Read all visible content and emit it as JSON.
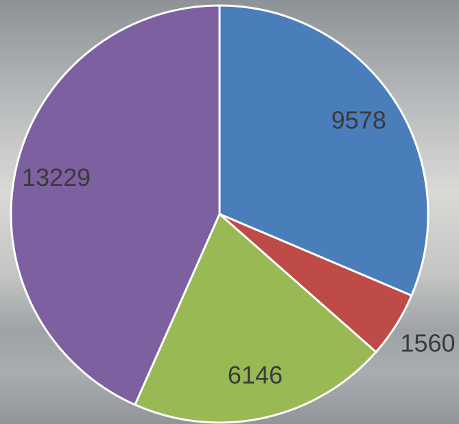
{
  "chart_data": {
    "type": "pie",
    "values": [
      9578,
      1560,
      6146,
      13229
    ],
    "colors": [
      "#4a7ebb",
      "#be4b48",
      "#98b954",
      "#7d60a0"
    ]
  }
}
